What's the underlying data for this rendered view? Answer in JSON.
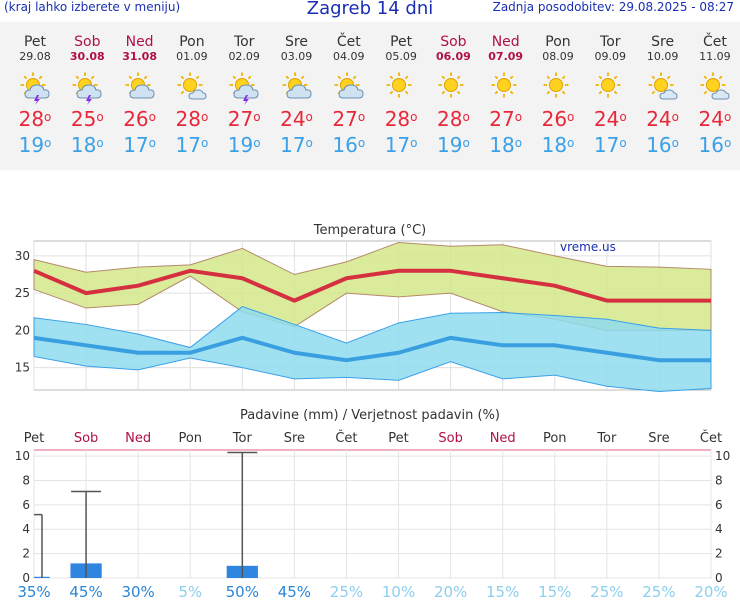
{
  "header": {
    "menu_hint": "(kraj lahko izberete v meniju)",
    "title": "Zagreb 14 dni",
    "updated": "Zadnja posodobitev: 29.08.2025 - 08:27"
  },
  "days": [
    {
      "name": "Pet",
      "date": "29.08",
      "weekend": false,
      "icon": "sun-cloud-thunder-icon",
      "tmax": "28",
      "tmin": "19"
    },
    {
      "name": "Sob",
      "date": "30.08",
      "weekend": true,
      "icon": "sun-cloud-thunder-icon",
      "tmax": "25",
      "tmin": "18"
    },
    {
      "name": "Ned",
      "date": "31.08",
      "weekend": true,
      "icon": "sun-cloud-icon",
      "tmax": "26",
      "tmin": "17"
    },
    {
      "name": "Pon",
      "date": "01.09",
      "weekend": false,
      "icon": "sun-small-cloud-icon",
      "tmax": "28",
      "tmin": "17"
    },
    {
      "name": "Tor",
      "date": "02.09",
      "weekend": false,
      "icon": "sun-cloud-thunder-icon",
      "tmax": "27",
      "tmin": "19"
    },
    {
      "name": "Sre",
      "date": "03.09",
      "weekend": false,
      "icon": "sun-cloud-icon",
      "tmax": "24",
      "tmin": "17"
    },
    {
      "name": "Čet",
      "date": "04.09",
      "weekend": false,
      "icon": "sun-cloud-icon",
      "tmax": "27",
      "tmin": "16"
    },
    {
      "name": "Pet",
      "date": "05.09",
      "weekend": false,
      "icon": "sun-icon",
      "tmax": "28",
      "tmin": "17"
    },
    {
      "name": "Sob",
      "date": "06.09",
      "weekend": true,
      "icon": "sun-icon",
      "tmax": "28",
      "tmin": "19"
    },
    {
      "name": "Ned",
      "date": "07.09",
      "weekend": true,
      "icon": "sun-icon",
      "tmax": "27",
      "tmin": "18"
    },
    {
      "name": "Pon",
      "date": "08.09",
      "weekend": false,
      "icon": "sun-icon",
      "tmax": "26",
      "tmin": "18"
    },
    {
      "name": "Tor",
      "date": "09.09",
      "weekend": false,
      "icon": "sun-icon",
      "tmax": "24",
      "tmin": "17"
    },
    {
      "name": "Sre",
      "date": "10.09",
      "weekend": false,
      "icon": "sun-small-cloud-icon",
      "tmax": "24",
      "tmin": "16"
    },
    {
      "name": "Čet",
      "date": "11.09",
      "weekend": false,
      "icon": "sun-small-cloud-icon",
      "tmax": "24",
      "tmin": "16"
    }
  ],
  "colors": {
    "title_blue": "#1a2fb3",
    "tmax": "#e8283a",
    "tmin": "#3aa0e8",
    "weekend": "#b0104a",
    "max_band": "#d4e88a",
    "min_band": "#8fdcef",
    "max_line": "#d5303f",
    "min_line": "#3a9fe0",
    "precip_bar": "#2f86e0"
  },
  "chart_data": [
    {
      "type": "line",
      "title": "Temperatura (°C)",
      "watermark": "vreme.us",
      "categories": [
        "29.08",
        "30.08",
        "31.08",
        "01.09",
        "02.09",
        "03.09",
        "04.09",
        "05.09",
        "06.09",
        "07.09",
        "08.09",
        "09.09",
        "10.09",
        "11.09"
      ],
      "ylim": [
        12,
        32
      ],
      "yticks": [
        15,
        20,
        25,
        30
      ],
      "series": [
        {
          "role": "max",
          "values": [
            28,
            25,
            26,
            28,
            27,
            24,
            27,
            28,
            28,
            27,
            26,
            24,
            24,
            24
          ]
        },
        {
          "role": "max-upper",
          "values": [
            29.5,
            27.8,
            28.5,
            28.8,
            31,
            27.5,
            29.2,
            31.8,
            31.3,
            31.5,
            30,
            28.6,
            28.5,
            28.2
          ]
        },
        {
          "role": "max-lower",
          "values": [
            25.5,
            23,
            23.5,
            27.3,
            22.5,
            20.5,
            25,
            24.5,
            25,
            22.5,
            21.5,
            20,
            20,
            20
          ]
        },
        {
          "role": "min",
          "values": [
            19,
            18,
            17,
            17,
            19,
            17,
            16,
            17,
            19,
            18,
            18,
            17,
            16,
            16
          ]
        },
        {
          "role": "min-upper",
          "values": [
            21.7,
            20.8,
            19.5,
            17.7,
            23.2,
            20.8,
            18.3,
            21,
            22.3,
            22.4,
            22,
            21.5,
            20.3,
            20
          ]
        },
        {
          "role": "min-lower",
          "values": [
            16.5,
            15.2,
            14.7,
            16.3,
            15,
            13.5,
            13.7,
            13.3,
            15.8,
            13.5,
            14,
            12.5,
            11.8,
            12.2
          ]
        }
      ]
    },
    {
      "type": "bar",
      "title": "Padavine (mm) / Verjetnost padavin (%)",
      "categories": [
        "Pet",
        "Sob",
        "Ned",
        "Pon",
        "Tor",
        "Sre",
        "Čet",
        "Pet",
        "Sob",
        "Ned",
        "Pon",
        "Tor",
        "Sre",
        "Čet"
      ],
      "weekend_flags": [
        false,
        true,
        true,
        false,
        false,
        false,
        false,
        false,
        true,
        true,
        false,
        false,
        false,
        false
      ],
      "ylim": [
        0,
        10.5
      ],
      "yticks": [
        0,
        2,
        4,
        6,
        8,
        10
      ],
      "values": [
        0.1,
        1.2,
        0,
        0,
        1,
        0,
        0,
        0,
        0,
        0,
        0,
        0,
        0,
        0
      ],
      "max_values": [
        5.2,
        7.1,
        0,
        0,
        10.3,
        0,
        0,
        0,
        0,
        0,
        0,
        0,
        0,
        0
      ],
      "probability": [
        "35%",
        "45%",
        "30%",
        "5%",
        "50%",
        "45%",
        "25%",
        "10%",
        "20%",
        "15%",
        "15%",
        "25%",
        "25%",
        "20%"
      ],
      "probability_values": [
        35,
        45,
        30,
        5,
        50,
        45,
        25,
        10,
        20,
        15,
        15,
        25,
        25,
        20
      ]
    }
  ]
}
